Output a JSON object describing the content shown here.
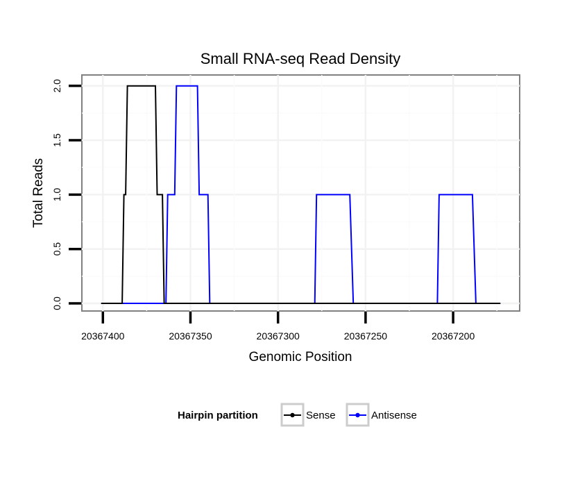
{
  "chart_data": {
    "type": "line",
    "title": "Small RNA-seq Read Density",
    "xlabel": "Genomic Position",
    "ylabel": "Total Reads",
    "x_reversed": true,
    "xlim": [
      20367412,
      20367162
    ],
    "ylim": [
      -0.07,
      2.1
    ],
    "x_ticks": [
      20367400,
      20367350,
      20367300,
      20367250,
      20367200
    ],
    "x_tick_labels": [
      "20367400",
      "20367350",
      "20367300",
      "20367250",
      "20367200"
    ],
    "y_ticks": [
      0,
      0.5,
      1,
      1.5,
      2
    ],
    "y_tick_labels": [
      "0.0",
      "0.5",
      "1.0",
      "1.5",
      "2.0"
    ],
    "grid": true,
    "legend": {
      "title": "Hairpin partition",
      "position": "bottom",
      "entries": [
        "Sense",
        "Antisense"
      ]
    },
    "series": [
      {
        "name": "Antisense",
        "color": "#0000ff",
        "points": [
          [
            20367401,
            0
          ],
          [
            20367364,
            0
          ],
          [
            20367363,
            1
          ],
          [
            20367359,
            1
          ],
          [
            20367358,
            2
          ],
          [
            20367346,
            2
          ],
          [
            20367345,
            1
          ],
          [
            20367340,
            1
          ],
          [
            20367339,
            0
          ],
          [
            20367279,
            0
          ],
          [
            20367278,
            1
          ],
          [
            20367259,
            1
          ],
          [
            20367257,
            0
          ],
          [
            20367209,
            0
          ],
          [
            20367208,
            1
          ],
          [
            20367189,
            1
          ],
          [
            20367187,
            0
          ],
          [
            20367173,
            0
          ]
        ]
      },
      {
        "name": "Sense",
        "color": "#000000",
        "points": [
          [
            20367401,
            0
          ],
          [
            20367389,
            0
          ],
          [
            20367388,
            1
          ],
          [
            20367387,
            1
          ],
          [
            20367386,
            2
          ],
          [
            20367370,
            2
          ],
          [
            20367369,
            1
          ],
          [
            20367366,
            1
          ],
          [
            20367365,
            0
          ],
          [
            20367173,
            0
          ]
        ]
      }
    ]
  }
}
